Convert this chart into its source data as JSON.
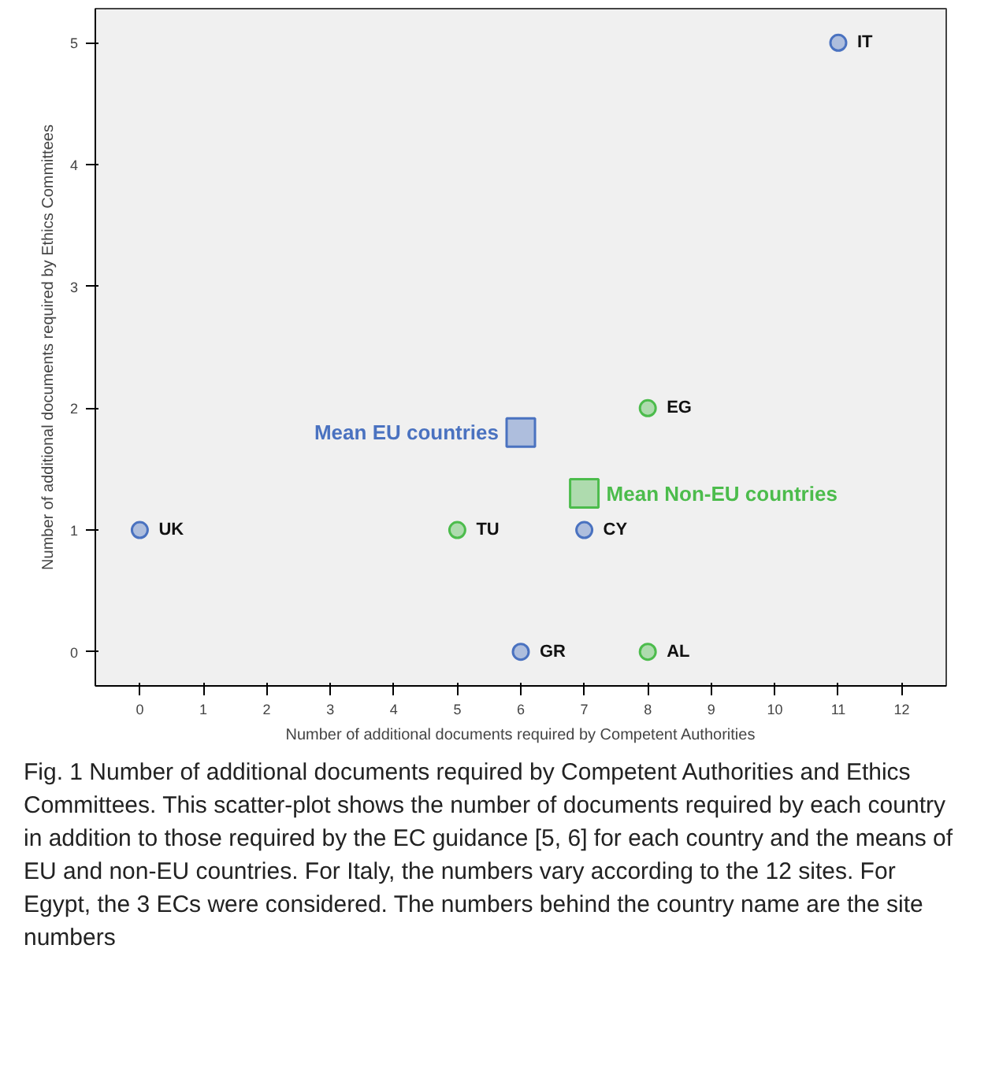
{
  "chart_data": {
    "type": "scatter",
    "xlabel": "Number of additional documents required by Competent Authorities",
    "ylabel": "Number of additional documents required by Ethics Committees",
    "xlim": [
      -0.7,
      12.7
    ],
    "ylim": [
      -0.28,
      5.28
    ],
    "xticks": [
      0,
      1,
      2,
      3,
      4,
      5,
      6,
      7,
      8,
      9,
      10,
      11,
      12
    ],
    "yticks": [
      0,
      1,
      2,
      3,
      4,
      5
    ],
    "grid": false,
    "series": [
      {
        "color": "#4a72c0",
        "marker": "circle",
        "x": [
          11,
          0,
          7,
          6
        ],
        "values": [
          5,
          1,
          1,
          0
        ],
        "value_labels": [
          "IT",
          "UK",
          "CY",
          "GR"
        ]
      },
      {
        "color": "#4cbc4c",
        "marker": "circle",
        "x": [
          5,
          8,
          8
        ],
        "values": [
          1,
          2,
          0
        ],
        "value_labels": [
          "TU",
          "EG",
          "AL"
        ]
      },
      {
        "name": "Mean EU countries",
        "color": "#4a72c0",
        "marker": "square",
        "x": [
          6
        ],
        "values": [
          1.8
        ]
      },
      {
        "name": "Mean Non-EU countries",
        "color": "#4cbc4c",
        "marker": "square",
        "x": [
          7
        ],
        "values": [
          1.3
        ]
      }
    ],
    "annotations": [
      "Fig. 1  Number of additional documents required by Competent Authorities and Ethics Committees. This scatter-plot shows the number of documents required by each country in addition to those required by the EC guidance [5, 6] for each country and the means of EU and non-EU countries. For Italy, the numbers vary according to the 12 sites. For Egypt, the 3 ECs were considered. The numbers behind the country name are the site numbers"
    ]
  }
}
